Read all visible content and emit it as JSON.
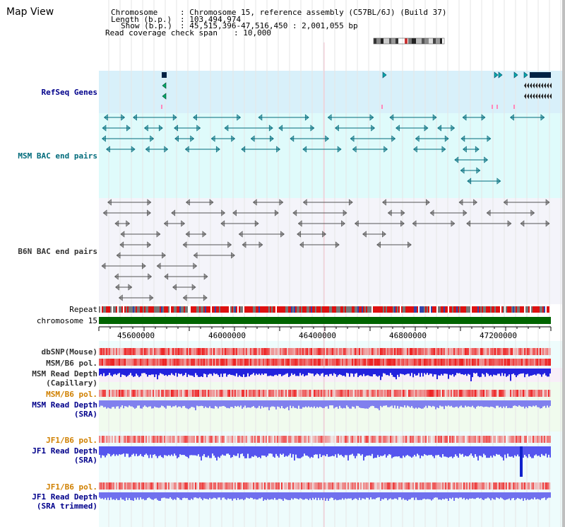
{
  "header": {
    "title": "Map View",
    "chromosome_label": "Chromosome",
    "chromosome_value": ": Chromosome 15, reference assembly (C57BL/6J) (Build 37)",
    "length_label": "Length (b.p.)",
    "length_value": ": 103,494,974",
    "show_label": "Show (b.p.)",
    "show_value": ": 45,515,396-47,516,450 : 2,001,055 bp",
    "coverage_label": "Read coverage check span",
    "coverage_value": ": 10,000"
  },
  "tracks": {
    "refseq": "RefSeq Genes",
    "msm_bac": "MSM BAC end pairs",
    "b6n_bac": "B6N BAC end pairs",
    "repeat": "Repeat",
    "chromosome": "chromosome 15",
    "dbsnp": "dbSNP(Mouse)",
    "msm_b6_pol_1": "MSM/B6 pol.",
    "msm_read_depth_cap_1": "MSM Read Depth",
    "msm_read_depth_cap_2": "(Capillary)",
    "msm_b6_pol_2": "MSM/B6 pol.",
    "msm_read_depth_sra_1": "MSM Read Depth",
    "msm_read_depth_sra_2": "(SRA)",
    "jf1_b6_pol_1": "JF1/B6 pol.",
    "jf1_read_depth_sra_1": "JF1 Read Depth",
    "jf1_read_depth_sra_2": "(SRA)",
    "jf1_b6_pol_2": "JF1/B6 pol.",
    "jf1_read_depth_trim_1": "JF1 Read Depth",
    "jf1_read_depth_trim_2": "(SRA trimmed)"
  },
  "axis": {
    "ticks": [
      "45600000",
      "46000000",
      "46400000",
      "46800000",
      "47200000"
    ]
  },
  "colors": {
    "refseq_bg": "#d8f0fa",
    "msm_bg": "#dffbfb",
    "b6n_bg": "#f4f4fa",
    "chromosome": "#006400",
    "depth_blue": "#3333ee",
    "pol_red": "#ee2222",
    "label_blue": "#00008b",
    "label_orange": "#d08000",
    "label_teal": "#006b7b"
  }
}
